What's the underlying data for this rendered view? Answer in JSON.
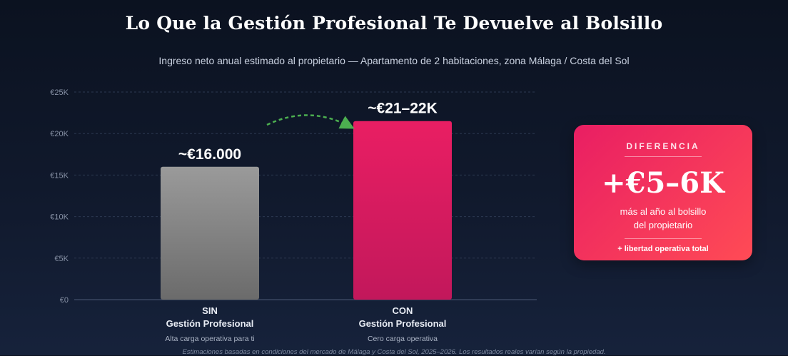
{
  "header": {
    "title": "Lo Que la Gestión Profesional Te Devuelve al Bolsillo",
    "subtitle": "Ingreso neto anual estimado al propietario — Apartamento de 2 habitaciones, zona Málaga / Costa del Sol"
  },
  "chart_data": {
    "type": "bar",
    "categories": [
      "SIN Gestión Profesional",
      "CON Gestión Profesional"
    ],
    "category_lines": [
      [
        "SIN",
        "Gestión Profesional"
      ],
      [
        "CON",
        "Gestión Profesional"
      ]
    ],
    "category_notes": [
      "Alta carga operativa para ti",
      "Cero carga operativa"
    ],
    "values": [
      16000,
      21500
    ],
    "data_labels": [
      "~€16.000",
      "~€21–22K"
    ],
    "bar_colors": [
      [
        "#9a9a9a",
        "#6b6b6b"
      ],
      [
        "#e91e63",
        "#c2185b"
      ]
    ],
    "ylim": [
      0,
      25000
    ],
    "yticks": [
      0,
      5000,
      10000,
      15000,
      20000,
      25000
    ],
    "ytick_labels": [
      "€0",
      "€5K",
      "€10K",
      "€15K",
      "€20K",
      "€25K"
    ],
    "grid": true,
    "arrow_color": "#4caf50"
  },
  "difference_card": {
    "label": "DIFERENCIA",
    "value": "+€5–6K",
    "description_line1": "más al año al bolsillo",
    "description_line2": "del propietario",
    "extra": "+ libertad operativa total"
  },
  "footnote": "Estimaciones basadas en condiciones del mercado de Málaga y Costa del Sol, 2025–2026. Los resultados reales varían según la propiedad."
}
